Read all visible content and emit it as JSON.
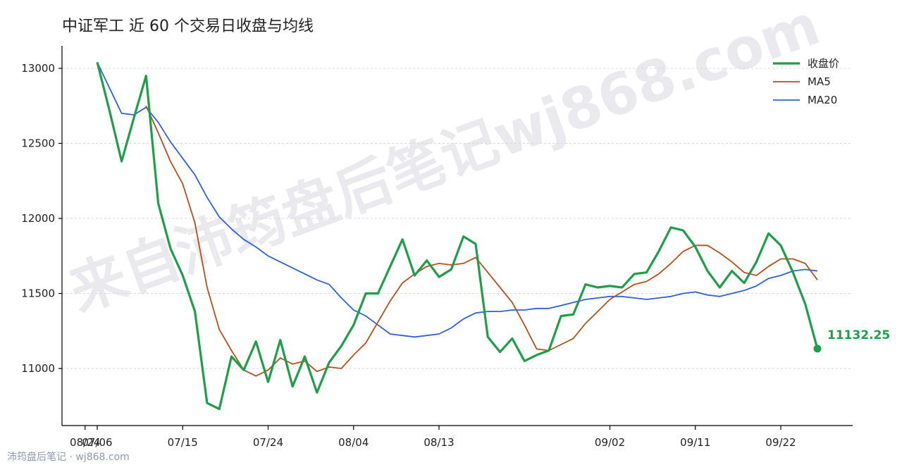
{
  "chart_data": {
    "type": "line",
    "title": "中证军工 近 60 个交易日收盘与均线",
    "x": [
      "07/06",
      "07/07",
      "07/08",
      "07/09",
      "07/10",
      "07/11",
      "07/14",
      "07/15",
      "07/16",
      "07/17",
      "07/18",
      "07/21",
      "07/22",
      "07/23",
      "07/24",
      "07/25",
      "07/28",
      "07/29",
      "07/30",
      "07/31",
      "08/01",
      "08/04",
      "08/05",
      "08/06",
      "08/07",
      "08/08",
      "08/11",
      "08/12",
      "08/13",
      "08/14",
      "08/15",
      "08/18",
      "08/19",
      "08/20",
      "08/21",
      "08/22",
      "08/25",
      "08/26",
      "08/27",
      "08/28",
      "08/29",
      "09/01",
      "09/02",
      "09/03",
      "09/04",
      "09/05",
      "09/08",
      "09/09",
      "09/10",
      "09/11",
      "09/12",
      "09/15",
      "09/16",
      "09/17",
      "09/18",
      "09/19",
      "09/22",
      "09/23",
      "09/24",
      "09/25"
    ],
    "xticks": [
      "07/06",
      "07/15",
      "07/24",
      "08/04",
      "08/13",
      "08/24",
      "09/02",
      "09/11",
      "09/22"
    ],
    "ylim": [
      10620,
      13150
    ],
    "yticks": [
      11000,
      11500,
      12000,
      12500,
      13000
    ],
    "grid": true,
    "legend_position": "top-right",
    "series": [
      {
        "name": "收盘价",
        "color": "#1f9e4a",
        "values": [
          13040,
          12720,
          12380,
          12670,
          12950,
          12100,
          11800,
          11620,
          11380,
          10770,
          10730,
          11080,
          10990,
          11180,
          10910,
          11190,
          10880,
          11080,
          10840,
          11040,
          11150,
          11290,
          11500,
          11500,
          11680,
          11860,
          11620,
          11720,
          11610,
          11660,
          11880,
          11830,
          11210,
          11110,
          11200,
          11050,
          11090,
          11120,
          11350,
          11360,
          11560,
          11540,
          11550,
          11540,
          11630,
          11640,
          11780,
          11940,
          11920,
          11810,
          11650,
          11540,
          11650,
          11570,
          11710,
          11900,
          11820,
          11640,
          11430,
          11132.25
        ]
      },
      {
        "name": "MA5",
        "color": "#b5501d",
        "values": [
          null,
          null,
          null,
          null,
          12750,
          12570,
          12380,
          12230,
          11970,
          11540,
          11260,
          11120,
          10990,
          10950,
          10990,
          11070,
          11030,
          11050,
          10980,
          11010,
          11000,
          11090,
          11170,
          11310,
          11450,
          11570,
          11630,
          11680,
          11700,
          11690,
          11700,
          11740,
          11640,
          11540,
          11440,
          11290,
          11130,
          11120,
          11160,
          11200,
          11300,
          11380,
          11460,
          11510,
          11560,
          11580,
          11630,
          11700,
          11780,
          11820,
          11820,
          11770,
          11710,
          11640,
          11620,
          11680,
          11730,
          11730,
          11700,
          11590
        ]
      },
      {
        "name": "MA20",
        "color": "#2e62d9",
        "values": [
          13040,
          12870,
          12700,
          12690,
          12740,
          12640,
          12510,
          12400,
          12290,
          12140,
          12010,
          11930,
          11860,
          11810,
          11750,
          11710,
          11670,
          11630,
          11590,
          11560,
          11470,
          11390,
          11350,
          11290,
          11230,
          11220,
          11210,
          11220,
          11230,
          11270,
          11330,
          11370,
          11380,
          11380,
          11390,
          11390,
          11400,
          11400,
          11420,
          11440,
          11460,
          11470,
          11480,
          11480,
          11470,
          11460,
          11470,
          11480,
          11500,
          11510,
          11490,
          11480,
          11500,
          11520,
          11550,
          11600,
          11620,
          11650,
          11660,
          11650
        ]
      }
    ],
    "last_value_label": "11132.25"
  },
  "watermark": "来自沛筠盘后笔记wj868.com",
  "footer": "沛筠盘后笔记 · wj868.com",
  "colors": {
    "close": "#1f9e4a",
    "ma5": "#b5501d",
    "ma20": "#2e62d9"
  }
}
